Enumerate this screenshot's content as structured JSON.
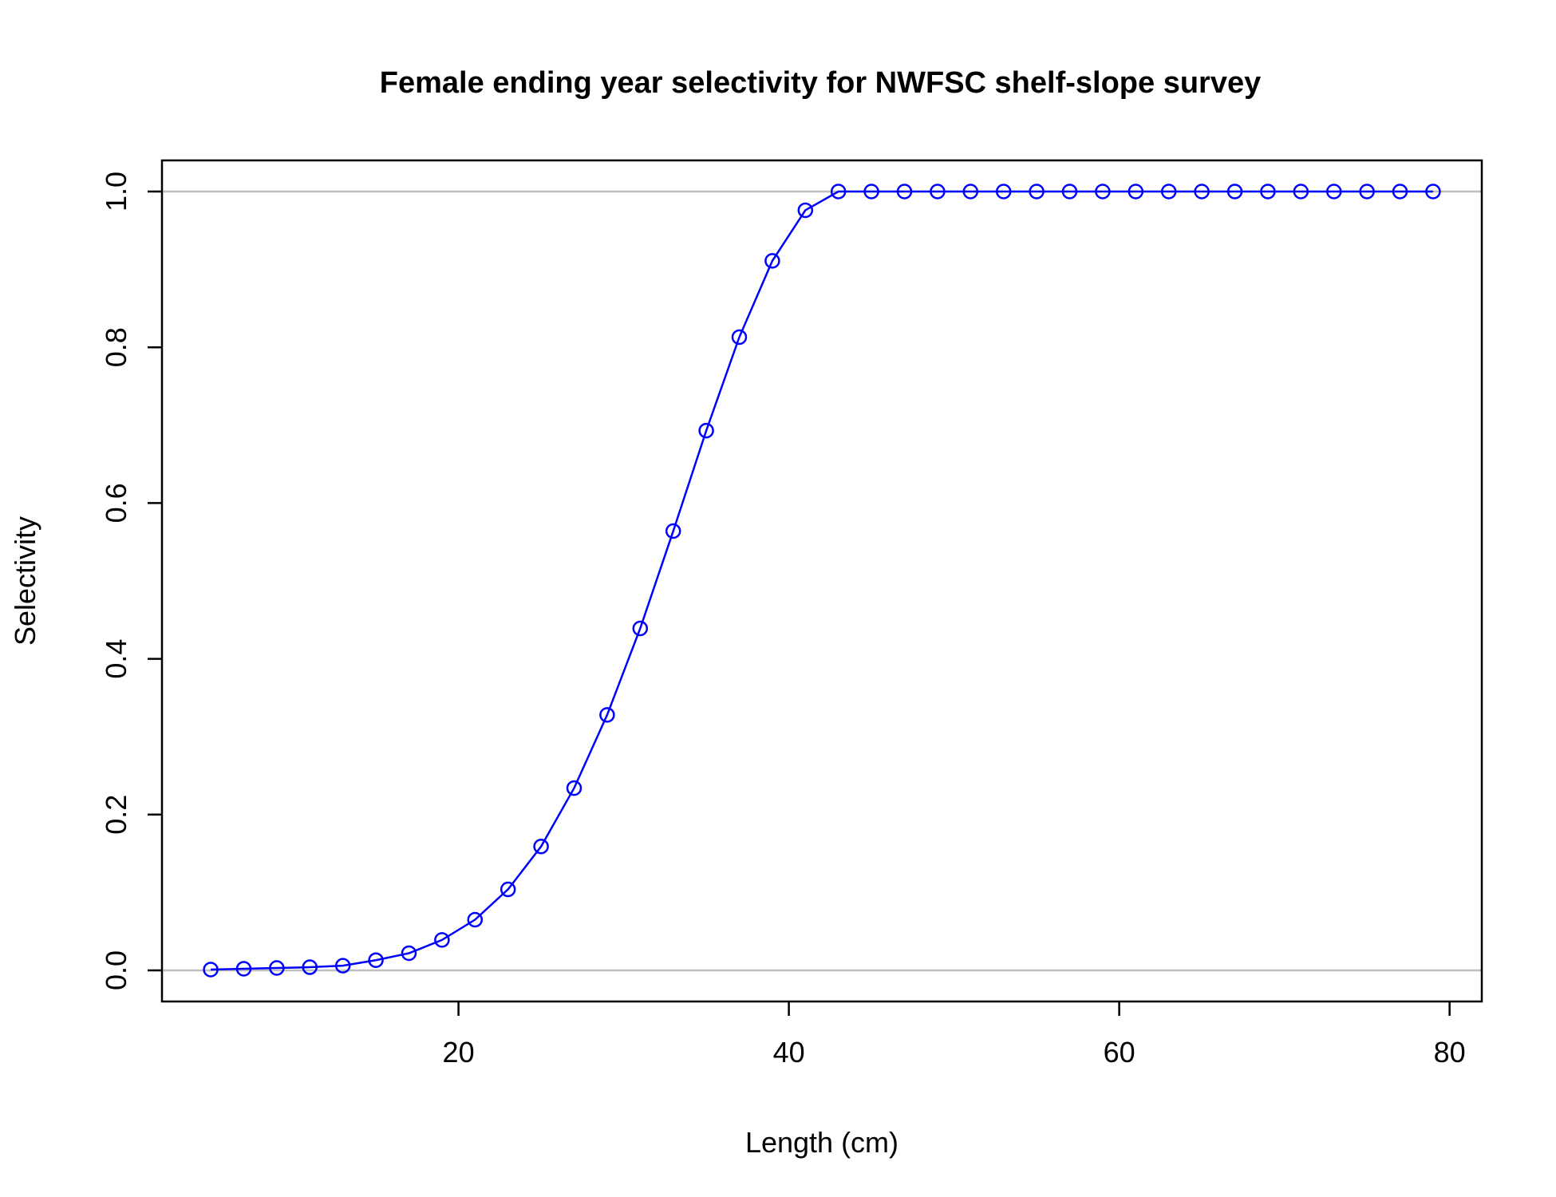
{
  "chart_data": {
    "type": "line",
    "title": "Female ending year selectivity for NWFSC shelf-slope survey",
    "xlabel": "Length (cm)",
    "ylabel": "Selectivity",
    "xlim": [
      2.05,
      81.95
    ],
    "ylim": [
      -0.04,
      1.04
    ],
    "xticks": [
      "20",
      "40",
      "60",
      "80"
    ],
    "yticks": [
      "0.0",
      "0.2",
      "0.4",
      "0.6",
      "0.8",
      "1.0"
    ],
    "reference_lines": [
      0,
      1
    ],
    "reference_line_color": "#bebebe",
    "series_color": "#0000ff",
    "marker": "open-circle",
    "series": [
      {
        "x": [
          5,
          7,
          9,
          11,
          13,
          15,
          17,
          19,
          21,
          23,
          25,
          27,
          29,
          31,
          33,
          35,
          37,
          39,
          41,
          43,
          45,
          47,
          49,
          51,
          53,
          55,
          57,
          59,
          61,
          63,
          65,
          67,
          69,
          71,
          73,
          75,
          77,
          79
        ],
        "values": [
          0.001,
          0.002,
          0.003,
          0.004,
          0.006,
          0.013,
          0.022,
          0.039,
          0.065,
          0.104,
          0.159,
          0.234,
          0.328,
          0.439,
          0.564,
          0.693,
          0.813,
          0.911,
          0.976,
          1.0,
          1.0,
          1.0,
          1.0,
          1.0,
          1.0,
          1.0,
          1.0,
          1.0,
          1.0,
          1.0,
          1.0,
          1.0,
          1.0,
          1.0,
          1.0,
          1.0,
          1.0,
          1.0
        ]
      }
    ]
  }
}
